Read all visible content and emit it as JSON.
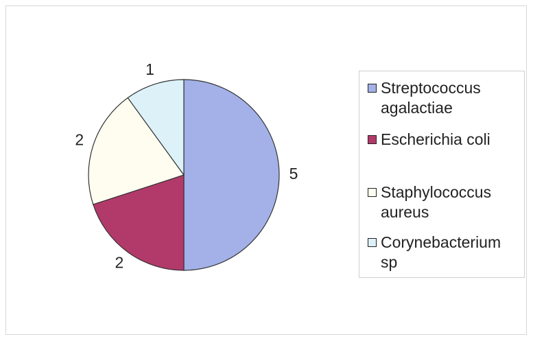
{
  "chart_data": {
    "type": "pie",
    "title": "",
    "categories": [
      "Streptococcus agalactiae",
      "Escherichia coli",
      "Staphylococcus aureus",
      "Corynebacterium sp"
    ],
    "values": [
      5,
      2,
      2,
      1
    ],
    "data_labels": [
      "5",
      "2",
      "2",
      "1"
    ],
    "colors": [
      "#a3b1e8",
      "#b23a6a",
      "#fefdf0",
      "#dcf1f8"
    ],
    "legend": {
      "placement": "right",
      "items": [
        {
          "label": "Streptococcus agalactiae",
          "color": "#a3b1e8"
        },
        {
          "label": "Escherichia coli",
          "color": "#b23a6a"
        },
        {
          "label": "Staphylococcus aureus",
          "color": "#fefdf0"
        },
        {
          "label": "Corynebacterium sp",
          "color": "#dcf1f8"
        }
      ]
    }
  }
}
